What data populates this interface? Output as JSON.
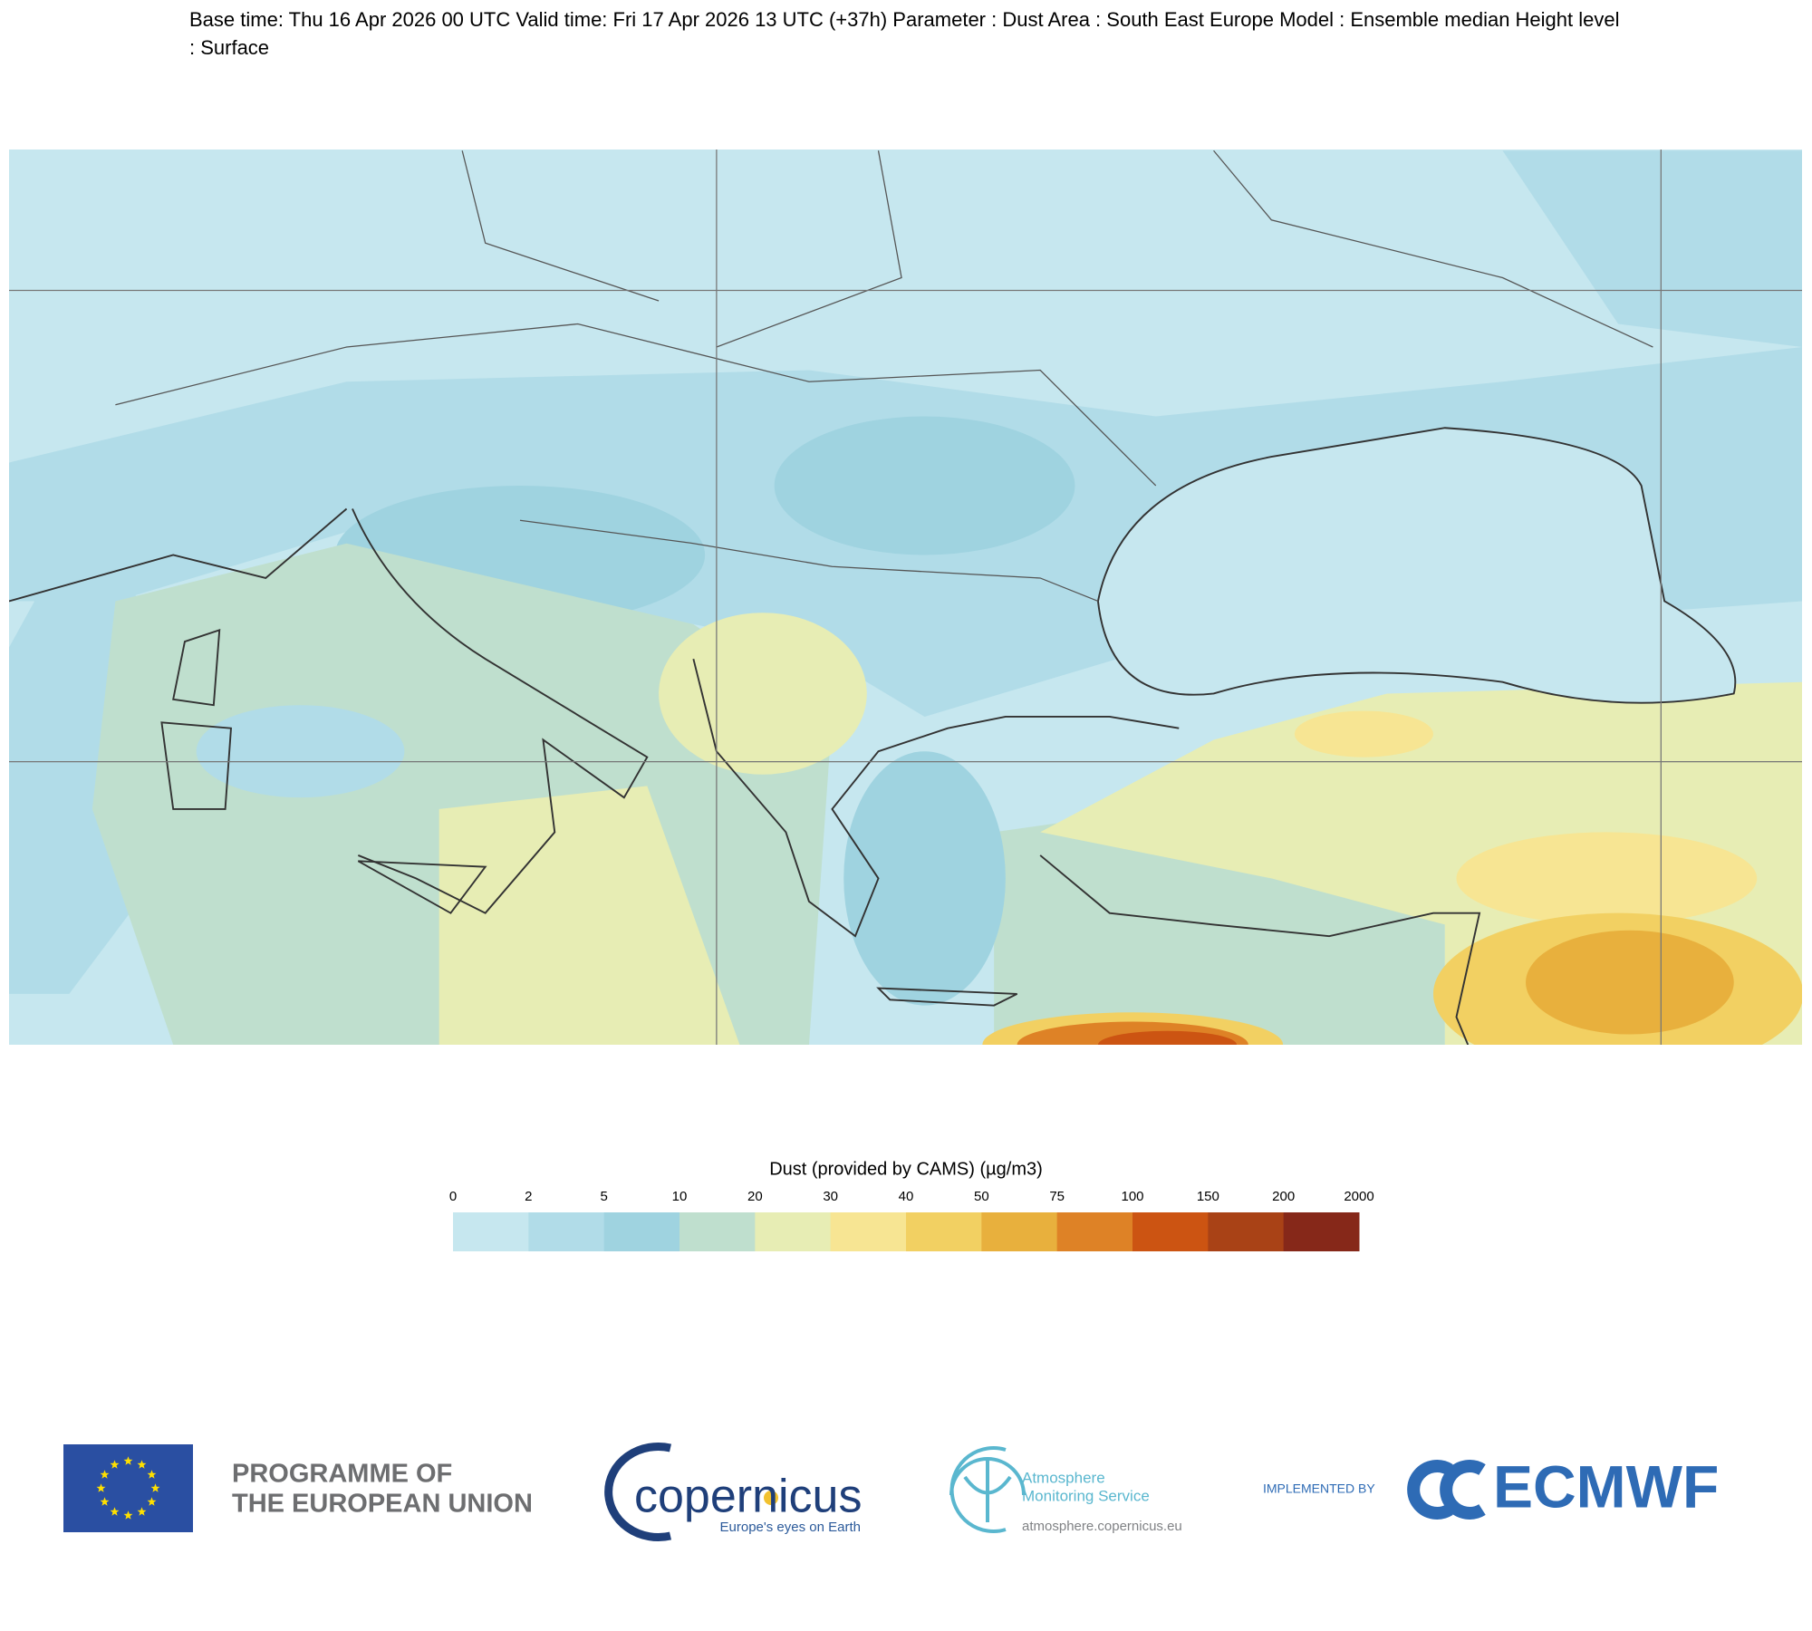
{
  "header": {
    "text": "Base time: Thu 16 Apr 2026 00 UTC Valid time: Fri 17 Apr 2026 13 UTC (+37h) Parameter : Dust Area : South East Europe Model : Ensemble median Height level : Surface"
  },
  "colorbar": {
    "title": "Dust (provided by CAMS) (µg/m3)",
    "ticks": [
      0,
      2,
      5,
      10,
      20,
      30,
      40,
      50,
      75,
      100,
      150,
      200,
      2000
    ],
    "colors": [
      "#c6e7ef",
      "#b1dce8",
      "#9fd3e0",
      "#bfdfce",
      "#e7edb4",
      "#f7e593",
      "#f2d062",
      "#e8b03d",
      "#de8226",
      "#cc5412",
      "#a94216",
      "#862819"
    ]
  },
  "footer": {
    "eu": [
      "PROGRAMME OF",
      "THE EUROPEAN UNION"
    ],
    "copernicus": {
      "name": "copernicus",
      "tagline": "Europe's eyes on Earth"
    },
    "atmosphere": {
      "lines": [
        "Atmosphere",
        "Monitoring Service"
      ],
      "url": "atmosphere.copernicus.eu"
    },
    "ecmwf": {
      "prefix": "IMPLEMENTED BY",
      "name": "ECMWF"
    }
  }
}
